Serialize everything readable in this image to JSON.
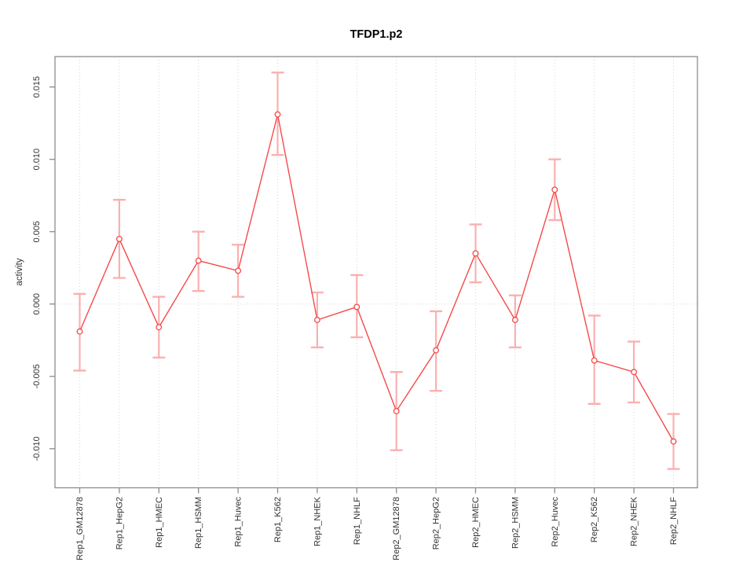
{
  "chart_data": {
    "type": "line",
    "title": "TFDP1.p2",
    "ylabel": "activity",
    "xlabel": "",
    "categories": [
      "Rep1_GM12878",
      "Rep1_HepG2",
      "Rep1_HMEC",
      "Rep1_HSMM",
      "Rep1_Huvec",
      "Rep1_K562",
      "Rep1_NHEK",
      "Rep1_NHLF",
      "Rep2_GM12878",
      "Rep2_HepG2",
      "Rep2_HMEC",
      "Rep2_HSMM",
      "Rep2_Huvec",
      "Rep2_K562",
      "Rep2_NHEK",
      "Rep2_NHLF"
    ],
    "series": [
      {
        "name": "activity",
        "values": [
          -0.0019,
          0.0045,
          -0.0016,
          0.003,
          0.0023,
          0.0131,
          -0.0011,
          -0.0002,
          -0.0074,
          -0.0032,
          0.0035,
          -0.0011,
          0.0079,
          -0.0039,
          -0.0047,
          -0.0095
        ],
        "error_lower": [
          -0.0046,
          0.0018,
          -0.0037,
          0.0009,
          0.0005,
          0.0103,
          -0.003,
          -0.0023,
          -0.0101,
          -0.006,
          0.0015,
          -0.003,
          0.0058,
          -0.0069,
          -0.0068,
          -0.0114
        ],
        "error_upper": [
          0.0007,
          0.0072,
          0.0005,
          0.005,
          0.0041,
          0.016,
          0.0008,
          0.002,
          -0.0047,
          -0.0005,
          0.0055,
          0.0006,
          0.01,
          -0.0008,
          -0.0026,
          -0.0076
        ]
      }
    ],
    "marker": "open-circle",
    "y_ticks": [
      "-0.010",
      "-0.005",
      "0.000",
      "0.005",
      "0.010",
      "0.015"
    ],
    "ylim": [
      -0.0127,
      0.0171
    ],
    "grid": {
      "vertical": "dotted line at each category",
      "horizontal_at": 0
    },
    "legend": "none",
    "colors": {
      "line": "#f64949",
      "marker": "#f64949",
      "error_bar": "#fab0b0",
      "axis": "#8c8c8c",
      "gridline": "#d6d6d6",
      "text": "#303030",
      "background": "#ffffff"
    }
  }
}
